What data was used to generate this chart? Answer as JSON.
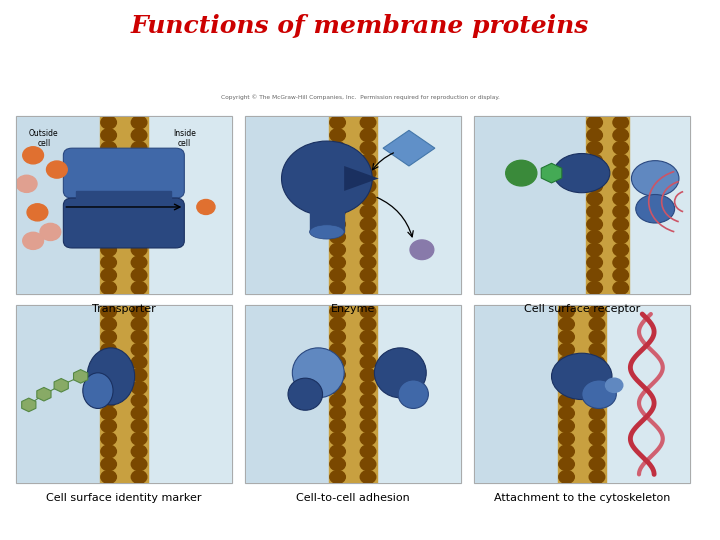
{
  "title": "Functions of membrane proteins",
  "title_color": "#CC0000",
  "title_fontsize": 18,
  "background_color": "#ffffff",
  "panel_labels": [
    "Transporter",
    "Enzyme",
    "Cell surface receptor",
    "Cell surface identity marker",
    "Cell-to-cell adhesion",
    "Attachment to the cytoskeleton"
  ],
  "outside_label": "Outside\ncell",
  "inside_label": "Inside\ncell",
  "copyright_text": "Copyright © The McGraw-Hill Companies, Inc.  Permission required for reproduction or display.",
  "label_fontsize": 8,
  "fig_width": 7.2,
  "fig_height": 5.4,
  "dpi": 100,
  "panel_bg_outside": "#C8DCE8",
  "panel_bg_inside": "#D8E8F0",
  "mem_tan": "#C8A040",
  "mem_brown": "#7A4800",
  "mem_light": "#E0C070",
  "prot_dark": "#2A4880",
  "prot_mid": "#4068A8",
  "prot_light": "#6088C0",
  "orange_mol": "#E07030",
  "pink_mol": "#E0A090",
  "green_mol": "#3A8A3A",
  "purple_mol": "#887AAA",
  "blue_mol": "#6090C8",
  "green_hex": "#88AA66",
  "red_fiber": "#C03040",
  "pink_fiber": "#D06070"
}
